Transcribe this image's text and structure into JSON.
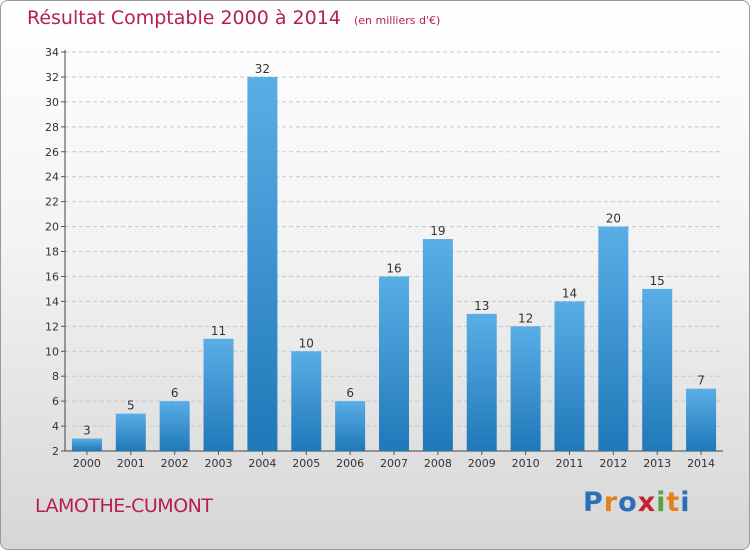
{
  "title": "Résultat Comptable 2000 à 2014",
  "unit": "(en milliers d'€)",
  "commune": "LAMOTHE-CUMONT",
  "logo": {
    "text": "Proxiti",
    "letters": [
      "P",
      "r",
      "o",
      "x",
      "i",
      "t",
      "i"
    ],
    "colors": [
      "#2a6fb7",
      "#e5801e",
      "#2a6fb7",
      "#c8202f",
      "#5aa33b",
      "#e5801e",
      "#2a6fb7"
    ]
  },
  "colors": {
    "title": "#b5204f",
    "bar_top": "#5aaee6",
    "bar_bottom": "#1f78b8",
    "grid": "#c8c8c8"
  },
  "chart_data": {
    "type": "bar",
    "title": "Résultat Comptable 2000 à 2014",
    "xlabel": "",
    "ylabel": "(en milliers d'€)",
    "categories": [
      "2000",
      "2001",
      "2002",
      "2003",
      "2004",
      "2005",
      "2006",
      "2007",
      "2008",
      "2009",
      "2010",
      "2011",
      "2012",
      "2013",
      "2014"
    ],
    "values": [
      3,
      5,
      6,
      11,
      32,
      10,
      6,
      16,
      19,
      13,
      12,
      14,
      20,
      15,
      7
    ],
    "ylim": [
      2,
      34
    ],
    "yticks": [
      2,
      4,
      6,
      8,
      10,
      12,
      14,
      16,
      18,
      20,
      22,
      24,
      26,
      28,
      30,
      32,
      34
    ],
    "grid": true
  }
}
